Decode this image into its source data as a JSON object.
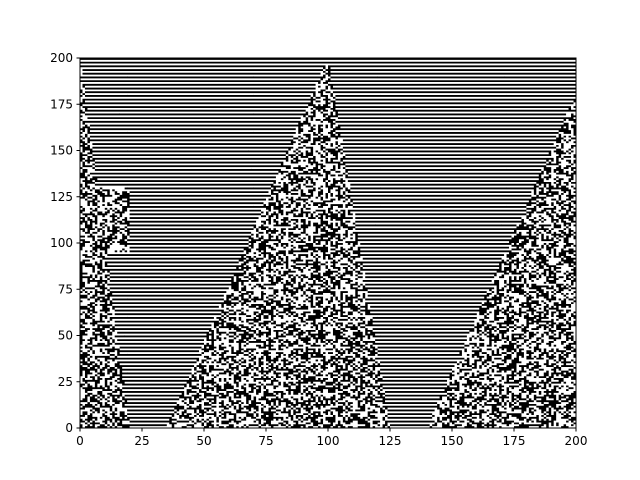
{
  "chart_data": {
    "type": "heatmap",
    "colormap": "gray",
    "colors": {
      "background": "#ffffff",
      "on": "#ffffff",
      "off": "#000000",
      "axis": "#000000"
    },
    "description_of_values": "binary (0/1) grid, 200 x 200 cells; horizontal black/white stripes with triangular regions of noisy cells",
    "xlim": [
      0,
      200
    ],
    "ylim": [
      0,
      200
    ],
    "xticks": [
      0,
      25,
      50,
      75,
      100,
      125,
      150,
      175,
      200
    ],
    "yticks": [
      0,
      25,
      50,
      75,
      100,
      125,
      150,
      175,
      200
    ],
    "xtick_labels": [
      "0",
      "25",
      "50",
      "75",
      "100",
      "125",
      "150",
      "175",
      "200"
    ],
    "ytick_labels": [
      "0",
      "25",
      "50",
      "75",
      "100",
      "125",
      "150",
      "175",
      "200"
    ],
    "grid": false,
    "noise_regions": [
      {
        "x_left_bottom": 0,
        "x_right_bottom": 20,
        "x_left_top": 0,
        "x_right_top": 0,
        "y_bottom": 0,
        "y_top": 200
      },
      {
        "x_left_bottom": 0,
        "x_right_bottom": 20,
        "x_left_top": 0,
        "x_right_top": 20,
        "y_bottom": 95,
        "y_top": 130
      },
      {
        "x_left_bottom": 35,
        "x_right_bottom": 125,
        "x_left_top": 100,
        "x_right_top": 100,
        "y_bottom": 0,
        "y_top": 200
      },
      {
        "x_left_bottom": 140,
        "x_right_bottom": 200,
        "x_left_top": 200,
        "x_right_top": 200,
        "y_bottom": 0,
        "y_top": 180
      }
    ]
  }
}
